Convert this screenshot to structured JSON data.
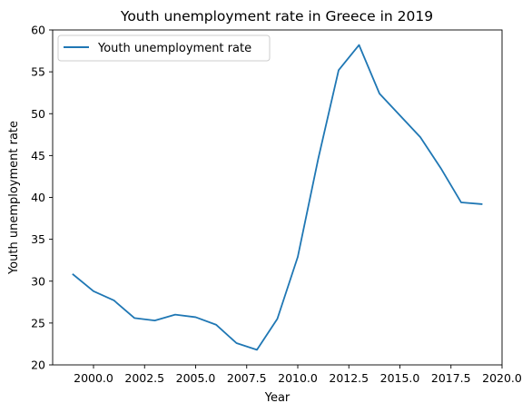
{
  "chart_data": {
    "type": "line",
    "title": "Youth unemployment rate in Greece in 2019",
    "xlabel": "Year",
    "ylabel": "Youth unemployment rate",
    "xlim": [
      1998,
      2020
    ],
    "ylim": [
      20,
      60
    ],
    "x_ticks": [
      2000.0,
      2002.5,
      2005.0,
      2007.5,
      2010.0,
      2012.5,
      2015.0,
      2017.5,
      2020.0
    ],
    "x_tick_labels": [
      "2000.0",
      "2002.5",
      "2005.0",
      "2007.5",
      "2010.0",
      "2012.5",
      "2015.0",
      "2017.5",
      "2020.0"
    ],
    "y_ticks": [
      20,
      25,
      30,
      35,
      40,
      45,
      50,
      55,
      60
    ],
    "y_tick_labels": [
      "20",
      "25",
      "30",
      "35",
      "40",
      "45",
      "50",
      "55",
      "60"
    ],
    "grid": false,
    "legend_position": "top-left",
    "series": [
      {
        "name": "Youth unemployment rate",
        "color": "#1f77b4",
        "x": [
          1999,
          2000,
          2001,
          2002,
          2003,
          2004,
          2005,
          2006,
          2007,
          2008,
          2009,
          2010,
          2011,
          2012,
          2013,
          2014,
          2015,
          2016,
          2017,
          2018,
          2019
        ],
        "y": [
          30.8,
          28.8,
          27.7,
          25.6,
          25.3,
          26.0,
          25.7,
          24.8,
          22.6,
          21.8,
          25.5,
          32.9,
          44.6,
          55.2,
          58.2,
          52.4,
          49.8,
          47.2,
          43.5,
          39.4,
          39.2
        ]
      }
    ]
  }
}
